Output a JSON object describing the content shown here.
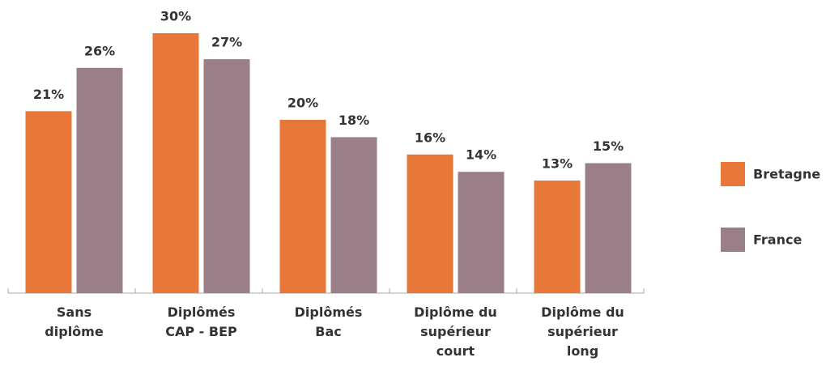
{
  "chart_data": {
    "type": "bar",
    "categories": [
      "Sans\ndiplôme",
      "Diplômés\nCAP - BEP",
      "Diplômés\nBac",
      "Diplôme du\nsupérieur\ncourt",
      "Diplôme du\nsupérieur\nlong"
    ],
    "series": [
      {
        "name": "Bretagne",
        "color": "#e8773a",
        "values": [
          21,
          30,
          20,
          16,
          13
        ],
        "value_labels": [
          "21%",
          "30%",
          "20%",
          "16%",
          "13%"
        ]
      },
      {
        "name": "France",
        "color": "#9b7f88",
        "values": [
          26,
          27,
          18,
          14,
          15
        ],
        "value_labels": [
          "26%",
          "27%",
          "18%",
          "14%",
          "15%"
        ]
      }
    ],
    "legend": "right"
  }
}
